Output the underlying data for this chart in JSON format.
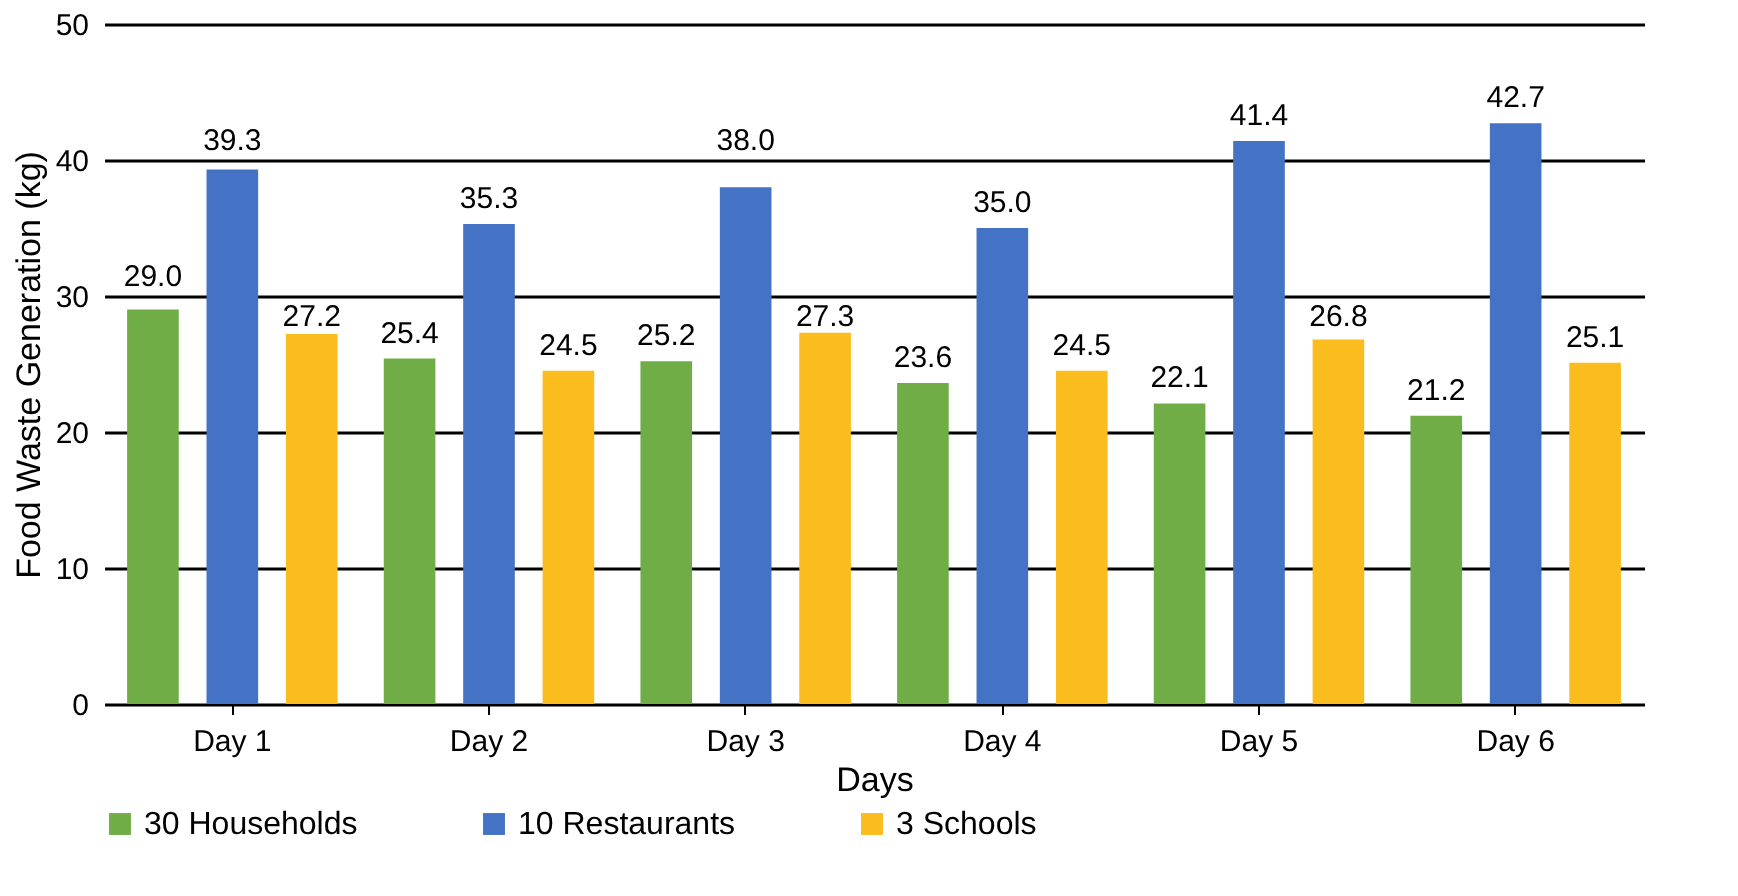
{
  "chart_data": {
    "type": "bar",
    "xlabel": "Days",
    "ylabel": "Food Waste Generation (kg)",
    "categories": [
      "Day 1",
      "Day 2",
      "Day 3",
      "Day 4",
      "Day 5",
      "Day 6"
    ],
    "series": [
      {
        "name": "30 Households",
        "color": "#70ad47",
        "values": [
          29.0,
          25.4,
          25.2,
          23.6,
          22.1,
          21.2
        ],
        "value_labels": [
          "29.0",
          "25.4",
          "25.2",
          "23.6",
          "22.1",
          "21.2"
        ]
      },
      {
        "name": "10 Restaurants",
        "color": "#4472c4",
        "values": [
          39.3,
          35.3,
          38.0,
          35.0,
          41.4,
          42.7
        ],
        "value_labels": [
          "39.3",
          "35.3",
          "38.0",
          "35.0",
          "41.4",
          "42.7"
        ]
      },
      {
        "name": "3 Schools",
        "color": "#fbbc1e",
        "values": [
          27.2,
          24.5,
          27.3,
          24.5,
          26.8,
          25.1
        ],
        "value_labels": [
          "27.2",
          "24.5",
          "27.3",
          "24.5",
          "26.8",
          "25.1"
        ]
      }
    ],
    "ylim": [
      0,
      50
    ],
    "yticks": [
      0,
      10,
      20,
      30,
      40,
      50
    ],
    "grid": "y",
    "legend": "bottom"
  }
}
